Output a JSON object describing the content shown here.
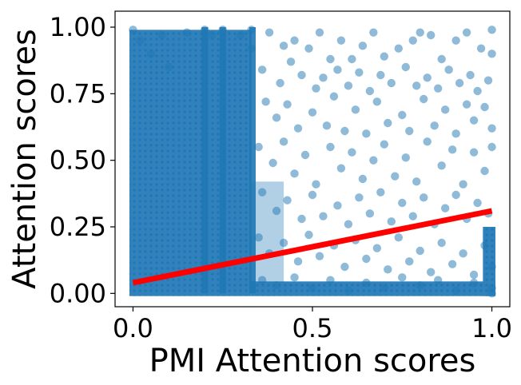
{
  "chart_data": {
    "type": "scatter",
    "title": "",
    "xlabel": "PMI Attention scores",
    "ylabel": "Attention scores",
    "xlim": [
      -0.05,
      1.05
    ],
    "ylim": [
      -0.05,
      1.06
    ],
    "xticks": [
      0.0,
      0.5,
      1.0
    ],
    "xtick_labels": [
      "0.0",
      "0.5",
      "1.0"
    ],
    "yticks": [
      0.0,
      0.25,
      0.5,
      0.75,
      1.0
    ],
    "ytick_labels": [
      "0.00",
      "0.25",
      "0.50",
      "0.75",
      "1.00"
    ],
    "grid": false,
    "legend": "none",
    "series": [
      {
        "kind": "scatter",
        "color": "#1f77b4",
        "alpha": 0.5,
        "description": "dense scatter of attention-score pairs; very dense near x=0 and along y=0, vertical streaks near x=0.2, 0.25, 0.33 and x=1.0",
        "points": [
          [
            0.0,
            0.99
          ],
          [
            0.02,
            0.95
          ],
          [
            0.05,
            0.9
          ],
          [
            0.08,
            0.97
          ],
          [
            0.1,
            0.85
          ],
          [
            0.15,
            0.98
          ],
          [
            0.2,
            0.99
          ],
          [
            0.22,
            0.97
          ],
          [
            0.25,
            0.99
          ],
          [
            0.3,
            0.97
          ],
          [
            0.33,
            0.99
          ],
          [
            0.33,
            0.92
          ],
          [
            0.38,
            0.98
          ],
          [
            0.42,
            0.93
          ],
          [
            0.45,
            0.95
          ],
          [
            0.49,
            0.92
          ],
          [
            0.52,
            0.98
          ],
          [
            0.55,
            0.88
          ],
          [
            0.58,
            0.95
          ],
          [
            0.61,
            0.88
          ],
          [
            0.64,
            0.93
          ],
          [
            0.67,
            0.98
          ],
          [
            0.7,
            0.89
          ],
          [
            0.74,
            0.92
          ],
          [
            0.78,
            0.95
          ],
          [
            0.8,
            0.98
          ],
          [
            0.83,
            0.97
          ],
          [
            0.86,
            0.88
          ],
          [
            0.9,
            0.95
          ],
          [
            0.93,
            0.98
          ],
          [
            0.97,
            0.92
          ],
          [
            1.0,
            0.99
          ],
          [
            1.0,
            0.9
          ],
          [
            0.36,
            0.84
          ],
          [
            0.41,
            0.79
          ],
          [
            0.44,
            0.87
          ],
          [
            0.47,
            0.82
          ],
          [
            0.51,
            0.77
          ],
          [
            0.53,
            0.81
          ],
          [
            0.57,
            0.84
          ],
          [
            0.6,
            0.78
          ],
          [
            0.63,
            0.83
          ],
          [
            0.66,
            0.76
          ],
          [
            0.69,
            0.82
          ],
          [
            0.72,
            0.79
          ],
          [
            0.76,
            0.85
          ],
          [
            0.79,
            0.78
          ],
          [
            0.82,
            0.81
          ],
          [
            0.85,
            0.77
          ],
          [
            0.88,
            0.84
          ],
          [
            0.91,
            0.79
          ],
          [
            0.94,
            0.82
          ],
          [
            0.96,
            0.76
          ],
          [
            0.99,
            0.8
          ],
          [
            0.37,
            0.72
          ],
          [
            0.4,
            0.66
          ],
          [
            0.43,
            0.71
          ],
          [
            0.46,
            0.62
          ],
          [
            0.5,
            0.68
          ],
          [
            0.54,
            0.63
          ],
          [
            0.56,
            0.74
          ],
          [
            0.59,
            0.61
          ],
          [
            0.62,
            0.69
          ],
          [
            0.65,
            0.6
          ],
          [
            0.68,
            0.72
          ],
          [
            0.71,
            0.64
          ],
          [
            0.75,
            0.67
          ],
          [
            0.77,
            0.61
          ],
          [
            0.81,
            0.73
          ],
          [
            0.84,
            0.63
          ],
          [
            0.87,
            0.69
          ],
          [
            0.9,
            0.6
          ],
          [
            0.93,
            0.71
          ],
          [
            0.95,
            0.65
          ],
          [
            0.98,
            0.7
          ],
          [
            1.0,
            0.62
          ],
          [
            0.35,
            0.55
          ],
          [
            0.39,
            0.49
          ],
          [
            0.42,
            0.57
          ],
          [
            0.45,
            0.45
          ],
          [
            0.48,
            0.52
          ],
          [
            0.51,
            0.41
          ],
          [
            0.55,
            0.55
          ],
          [
            0.58,
            0.47
          ],
          [
            0.61,
            0.53
          ],
          [
            0.64,
            0.43
          ],
          [
            0.67,
            0.5
          ],
          [
            0.7,
            0.56
          ],
          [
            0.73,
            0.44
          ],
          [
            0.76,
            0.51
          ],
          [
            0.79,
            0.42
          ],
          [
            0.82,
            0.57
          ],
          [
            0.86,
            0.48
          ],
          [
            0.89,
            0.54
          ],
          [
            0.92,
            0.41
          ],
          [
            0.95,
            0.53
          ],
          [
            0.98,
            0.46
          ],
          [
            1.0,
            0.55
          ],
          [
            0.36,
            0.38
          ],
          [
            0.4,
            0.31
          ],
          [
            0.43,
            0.35
          ],
          [
            0.47,
            0.28
          ],
          [
            0.5,
            0.37
          ],
          [
            0.53,
            0.29
          ],
          [
            0.57,
            0.33
          ],
          [
            0.6,
            0.26
          ],
          [
            0.63,
            0.36
          ],
          [
            0.66,
            0.3
          ],
          [
            0.69,
            0.38
          ],
          [
            0.72,
            0.27
          ],
          [
            0.75,
            0.34
          ],
          [
            0.78,
            0.29
          ],
          [
            0.81,
            0.36
          ],
          [
            0.84,
            0.26
          ],
          [
            0.87,
            0.32
          ],
          [
            0.9,
            0.37
          ],
          [
            0.93,
            0.28
          ],
          [
            0.96,
            0.34
          ],
          [
            0.99,
            0.3
          ],
          [
            0.35,
            0.21
          ],
          [
            0.38,
            0.15
          ],
          [
            0.42,
            0.19
          ],
          [
            0.46,
            0.12
          ],
          [
            0.49,
            0.22
          ],
          [
            0.52,
            0.14
          ],
          [
            0.56,
            0.18
          ],
          [
            0.59,
            0.1
          ],
          [
            0.62,
            0.2
          ],
          [
            0.65,
            0.13
          ],
          [
            0.68,
            0.17
          ],
          [
            0.71,
            0.09
          ],
          [
            0.74,
            0.21
          ],
          [
            0.77,
            0.12
          ],
          [
            0.8,
            0.16
          ],
          [
            0.83,
            0.08
          ],
          [
            0.86,
            0.19
          ],
          [
            0.89,
            0.11
          ],
          [
            0.92,
            0.15
          ],
          [
            0.95,
            0.07
          ],
          [
            0.98,
            0.18
          ],
          [
            1.0,
            0.1
          ],
          [
            0.36,
            0.05
          ],
          [
            0.4,
            0.03
          ],
          [
            0.45,
            0.06
          ],
          [
            0.5,
            0.02
          ],
          [
            0.55,
            0.05
          ],
          [
            0.6,
            0.01
          ],
          [
            0.65,
            0.04
          ],
          [
            0.7,
            0.02
          ],
          [
            0.75,
            0.06
          ],
          [
            0.8,
            0.03
          ],
          [
            0.85,
            0.05
          ],
          [
            0.9,
            0.01
          ],
          [
            0.95,
            0.04
          ],
          [
            1.0,
            0.02
          ],
          [
            1.0,
            0.0
          ]
        ]
      },
      {
        "kind": "line",
        "color": "#ff0000",
        "description": "linear regression fit",
        "x": [
          0.0,
          1.0
        ],
        "y": [
          0.04,
          0.31
        ]
      }
    ]
  }
}
